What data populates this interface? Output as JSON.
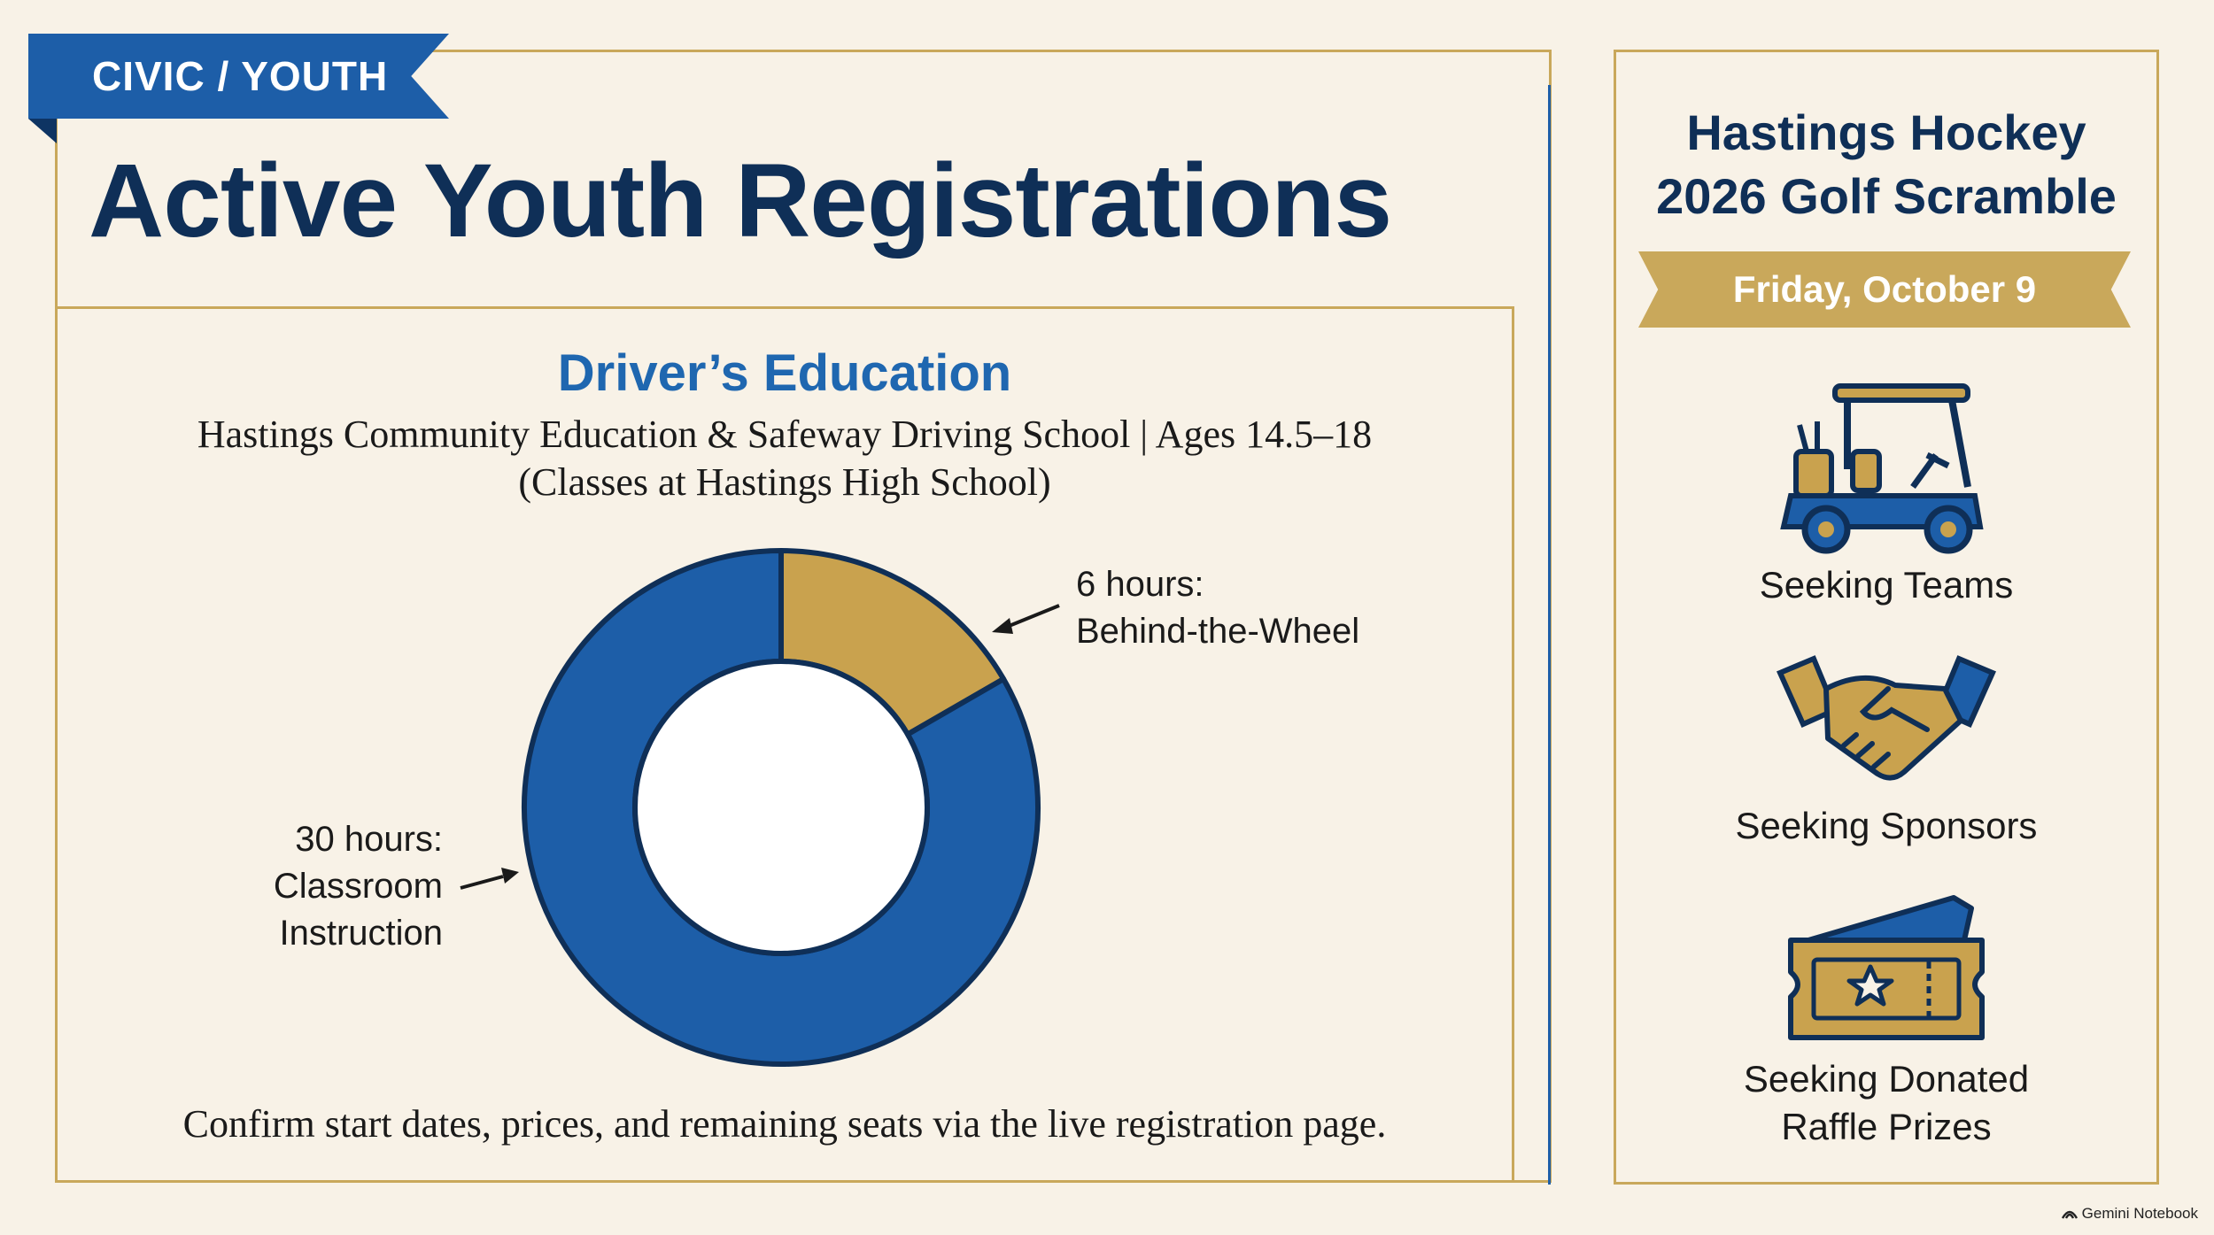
{
  "header": {
    "tag": "CIVIC / YOUTH",
    "title": "Active Youth Registrations"
  },
  "program": {
    "title": "Driver’s Education",
    "subtitle_line1": "Hastings Community Education & Safeway Driving School | Ages 14.5–18",
    "subtitle_line2": "(Classes at Hastings High School)",
    "footnote": "Confirm start dates, prices, and remaining seats via the live registration page."
  },
  "chart_data": {
    "type": "pie",
    "donut": true,
    "slices": [
      {
        "label": "Behind-the-Wheel",
        "value": 6,
        "unit": "hours",
        "color": "#c9a24e",
        "annotation_line1": "6 hours:",
        "annotation_line2": "Behind-the-Wheel"
      },
      {
        "label": "Classroom Instruction",
        "value": 30,
        "unit": "hours",
        "color": "#1d5ea8",
        "annotation_line1": "30 hours:",
        "annotation_line2": "Classroom",
        "annotation_line3": "Instruction"
      }
    ]
  },
  "sidebar": {
    "title_line1": "Hastings Hockey",
    "title_line2": "2026 Golf Scramble",
    "date": "Friday, October 9",
    "items": [
      {
        "icon": "golf-cart-icon",
        "label_line1": "Seeking Teams"
      },
      {
        "icon": "handshake-icon",
        "label_line1": "Seeking Sponsors"
      },
      {
        "icon": "ticket-icon",
        "label_line1": "Seeking Donated",
        "label_line2": "Raffle Prizes"
      }
    ]
  },
  "branding": {
    "label": "Gemini Notebook"
  },
  "colors": {
    "navy": "#0f2f57",
    "blue": "#1d5ea8",
    "gold": "#c9a85b",
    "background": "#f8f2e7"
  }
}
